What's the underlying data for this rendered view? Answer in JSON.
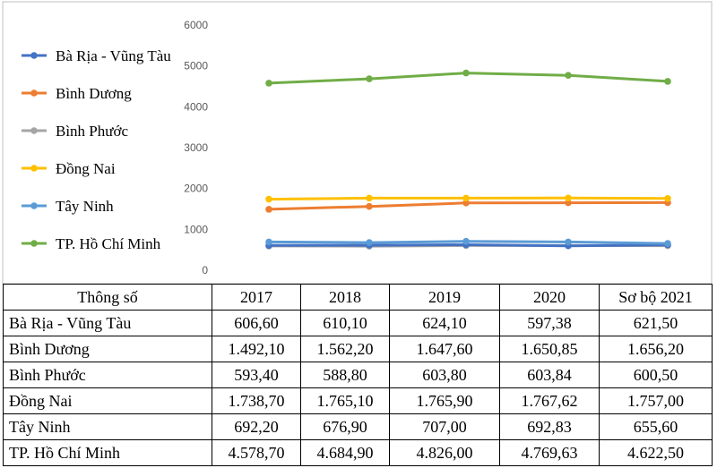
{
  "colors": {
    "Bà Rịa - Vũng Tàu": "#4472C4",
    "Bình Dương": "#ED7D31",
    "Bình Phước": "#A5A5A5",
    "Đồng Nai": "#FFC000",
    "Tây Ninh": "#5B9BD5",
    "TP. Hồ Chí Minh": "#70AD47"
  },
  "chart_data": {
    "type": "line",
    "title": "",
    "xlabel": "",
    "ylabel": "",
    "ylim": [
      0,
      6000
    ],
    "yticks": [
      "0",
      "1000",
      "2000",
      "3000",
      "4000",
      "5000",
      "6000"
    ],
    "categories": [
      "2017",
      "2018",
      "2019",
      "2020",
      "Sơ bộ 2021"
    ],
    "grid": false,
    "legend_position": "left",
    "series": [
      {
        "name": "Bà Rịa - Vũng Tàu",
        "values": [
          606.6,
          610.1,
          624.1,
          597.38,
          621.5
        ]
      },
      {
        "name": "Bình Dương",
        "values": [
          1492.1,
          1562.2,
          1647.6,
          1650.85,
          1656.2
        ]
      },
      {
        "name": "Bình Phước",
        "values": [
          593.4,
          588.8,
          603.8,
          603.84,
          600.5
        ]
      },
      {
        "name": "Đồng Nai",
        "values": [
          1738.7,
          1765.1,
          1765.9,
          1767.62,
          1757.0
        ]
      },
      {
        "name": "Tây Ninh",
        "values": [
          692.2,
          676.9,
          707.0,
          692.83,
          655.6
        ]
      },
      {
        "name": "TP. Hồ Chí Minh",
        "values": [
          4578.7,
          4684.9,
          4826.0,
          4769.63,
          4622.5
        ]
      }
    ]
  },
  "table": {
    "header": [
      "Thông số",
      "2017",
      "2018",
      "2019",
      "2020",
      "Sơ bộ 2021"
    ],
    "rows": [
      [
        "Bà Rịa - Vũng Tàu",
        "606,60",
        "610,10",
        "624,10",
        "597,38",
        "621,50"
      ],
      [
        "Bình Dương",
        "1.492,10",
        "1.562,20",
        "1.647,60",
        "1.650,85",
        "1.656,20"
      ],
      [
        "Bình Phước",
        "593,40",
        "588,80",
        "603,80",
        "603,84",
        "600,50"
      ],
      [
        "Đồng Nai",
        "1.738,70",
        "1.765,10",
        "1.765,90",
        "1.767,62",
        "1.757,00"
      ],
      [
        "Tây Ninh",
        "692,20",
        "676,90",
        "707,00",
        "692,83",
        "655,60"
      ],
      [
        "TP. Hồ Chí Minh",
        "4.578,70",
        "4.684,90",
        "4.826,00",
        "4.769,63",
        "4.622,50"
      ]
    ]
  }
}
